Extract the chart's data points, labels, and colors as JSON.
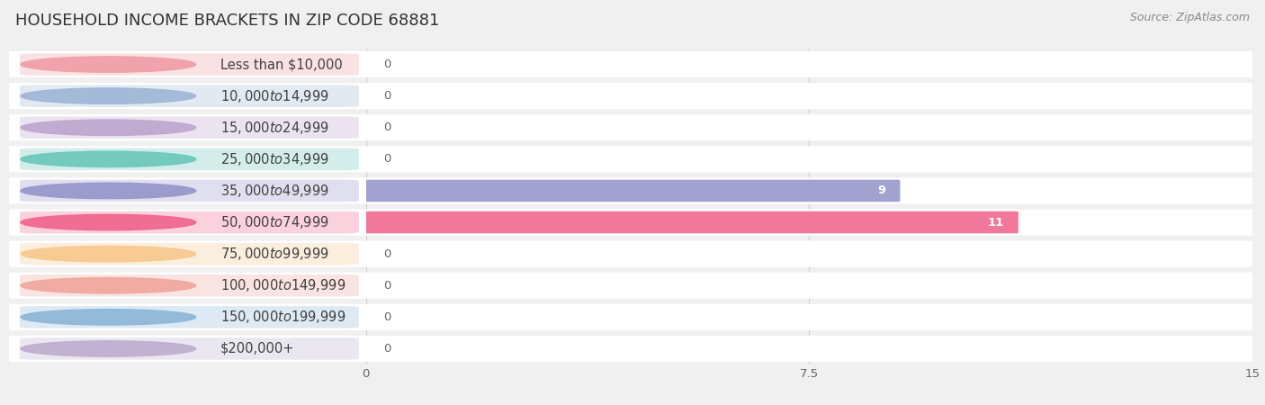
{
  "title": "HOUSEHOLD INCOME BRACKETS IN ZIP CODE 68881",
  "source": "Source: ZipAtlas.com",
  "categories": [
    "Less than $10,000",
    "$10,000 to $14,999",
    "$15,000 to $24,999",
    "$25,000 to $34,999",
    "$35,000 to $49,999",
    "$50,000 to $74,999",
    "$75,000 to $99,999",
    "$100,000 to $149,999",
    "$150,000 to $199,999",
    "$200,000+"
  ],
  "values": [
    0,
    0,
    0,
    0,
    9,
    11,
    0,
    0,
    0,
    0
  ],
  "bar_colors": [
    "#f0a0a8",
    "#a0b8d8",
    "#c0a8d0",
    "#70c8bc",
    "#9898cc",
    "#f06890",
    "#f8c890",
    "#f0a8a0",
    "#90b8d8",
    "#c0b0d0"
  ],
  "xlim": [
    0,
    15
  ],
  "xticks": [
    0,
    7.5,
    15
  ],
  "bg_color": "#f0f0f0",
  "row_bg_color": "#ffffff",
  "row_alt_color": "#f7f7f7",
  "grid_color": "#d0d0d0",
  "title_fontsize": 13,
  "label_fontsize": 10.5,
  "value_fontsize": 9.5,
  "source_fontsize": 9
}
